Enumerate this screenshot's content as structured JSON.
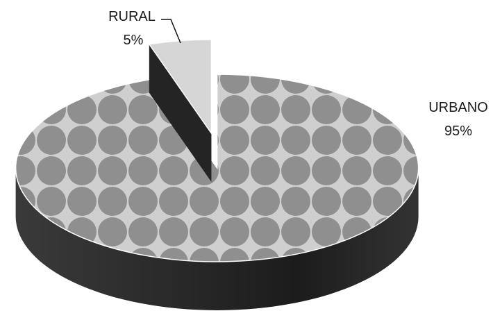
{
  "chart_data": {
    "type": "pie",
    "style": "3d-exploded",
    "categories": [
      "URBANO",
      "RURAL"
    ],
    "values": [
      95,
      5
    ],
    "value_labels": [
      "95%",
      "5%"
    ],
    "exploded": [
      "RURAL"
    ],
    "title": "",
    "legend": "none",
    "colors": {
      "urbano_top_base": "#cfcfcf",
      "urbano_top_dots": "#8f8f8f",
      "side_dark": "#2a2a2a",
      "rural_top": "#d6d6d6",
      "leader_line": "#111111"
    }
  }
}
